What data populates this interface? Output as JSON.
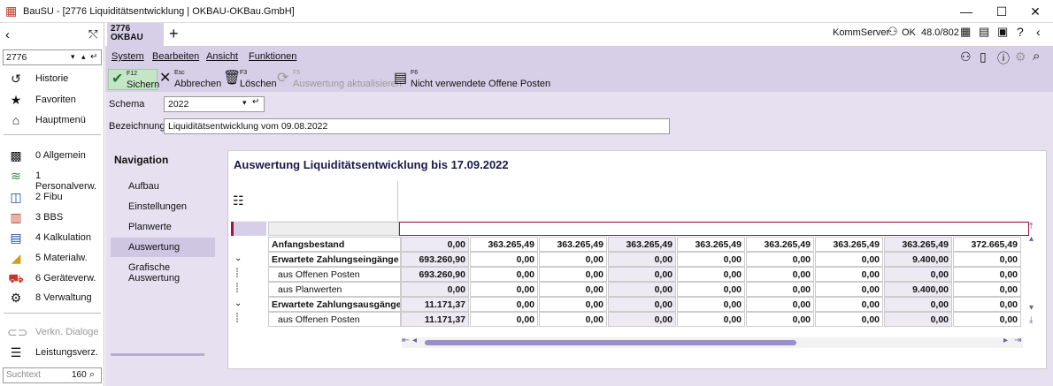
{
  "window": {
    "title": "BauSU - [2776 Liquiditätsentwicklung | OKBAU-OKBau.GmbH]"
  },
  "sidebar": {
    "search_value": "2776",
    "filter_placeholder": "Suchtext",
    "filter_count": "160",
    "items": [
      {
        "label": "Historie",
        "icon": "history-icon"
      },
      {
        "label": "Favoriten",
        "icon": "star-icon"
      },
      {
        "label": "Hauptmenü",
        "icon": "home-icon"
      }
    ],
    "modules": [
      {
        "label": "0 Allgemein"
      },
      {
        "label": "1 Personalverw."
      },
      {
        "label": "2 Fibu"
      },
      {
        "label": "3 BBS"
      },
      {
        "label": "4 Kalkulation"
      },
      {
        "label": "5 Materialw."
      },
      {
        "label": "6 Geräteverw."
      },
      {
        "label": "8 Verwaltung"
      }
    ],
    "extra": [
      {
        "label": "Verkn. Dialoge"
      },
      {
        "label": "Leistungsverz."
      }
    ]
  },
  "tabs": {
    "active_line1": "2776",
    "active_line2": "OKBAU",
    "plus": "+"
  },
  "status": {
    "server": "KommServer",
    "user": "OK",
    "version": "48.0/802"
  },
  "menu": [
    "System",
    "Bearbeiten",
    "Ansicht",
    "Funktionen"
  ],
  "toolbar": {
    "save_key": "F12",
    "save": "Sichern",
    "cancel_key": "Esc",
    "cancel": "Abbrechen",
    "delete_key": "F3",
    "delete": "Löschen",
    "refresh_key": "F5",
    "refresh": "Auswertung aktualisieren",
    "unused_key": "F6",
    "unused": "Nicht verwendete Offene Posten"
  },
  "form": {
    "schema_label": "Schema",
    "schema_value": "2022",
    "bez_label": "Bezeichnung",
    "bez_value": "Liquiditätsentwicklung vom 09.08.2022"
  },
  "navigation": {
    "title": "Navigation",
    "items": [
      "Aufbau",
      "Einstellungen",
      "Planwerte",
      "Auswertung",
      "Grafische Auswertung"
    ]
  },
  "panel": {
    "title": "Auswertung Liquiditätsentwicklung  bis 17.09.2022"
  },
  "table": {
    "rows": [
      {
        "name": "Anfangsbestand",
        "values": [
          "0,00",
          "363.265,49",
          "363.265,49",
          "363.265,49",
          "363.265,49",
          "363.265,49",
          "363.265,49",
          "363.265,49",
          "372.665,49"
        ]
      },
      {
        "name": "Erwartete Zahlungseingänge",
        "values": [
          "693.260,90",
          "0,00",
          "0,00",
          "0,00",
          "0,00",
          "0,00",
          "0,00",
          "9.400,00",
          "0,00"
        ]
      },
      {
        "name": "aus Offenen Posten",
        "values": [
          "693.260,90",
          "0,00",
          "0,00",
          "0,00",
          "0,00",
          "0,00",
          "0,00",
          "0,00",
          "0,00"
        ]
      },
      {
        "name": "aus Planwerten",
        "values": [
          "0,00",
          "0,00",
          "0,00",
          "0,00",
          "0,00",
          "0,00",
          "0,00",
          "9.400,00",
          "0,00"
        ]
      },
      {
        "name": "Erwartete Zahlungsausgänge",
        "values": [
          "11.171,37",
          "0,00",
          "0,00",
          "0,00",
          "0,00",
          "0,00",
          "0,00",
          "0,00",
          "0,00"
        ]
      },
      {
        "name": "aus Offenen Posten",
        "values": [
          "11.171,37",
          "0,00",
          "0,00",
          "0,00",
          "0,00",
          "0,00",
          "0,00",
          "0,00",
          "0,00"
        ]
      }
    ]
  }
}
